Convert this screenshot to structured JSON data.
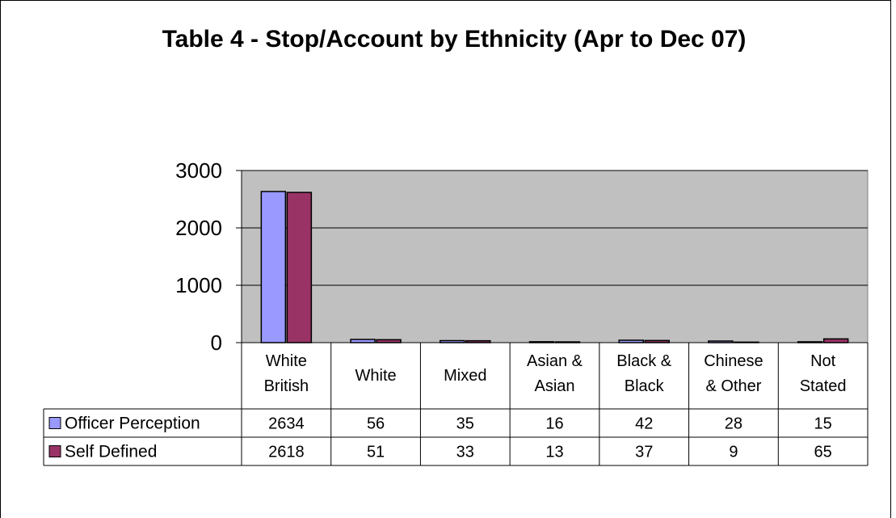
{
  "chart_data": {
    "type": "bar",
    "title": "Table 4 - Stop/Account by Ethnicity (Apr to Dec 07)",
    "categories": [
      [
        "White",
        "British"
      ],
      [
        "White"
      ],
      [
        "Mixed"
      ],
      [
        "Asian &",
        "Asian"
      ],
      [
        "Black &",
        "Black"
      ],
      [
        "Chinese",
        "& Other"
      ],
      [
        "Not",
        "Stated"
      ]
    ],
    "series": [
      {
        "name": "Officer Perception",
        "color": "#9999ff",
        "values": [
          2634,
          56,
          35,
          16,
          42,
          28,
          15
        ]
      },
      {
        "name": "Self Defined",
        "color": "#993366",
        "values": [
          2618,
          51,
          33,
          13,
          37,
          9,
          65
        ]
      }
    ],
    "ylim": [
      0,
      3000
    ],
    "yticks": [
      "0",
      "1000",
      "2000",
      "3000"
    ],
    "grid": true,
    "plot_background": "#c0c0c0",
    "data_table": true
  }
}
